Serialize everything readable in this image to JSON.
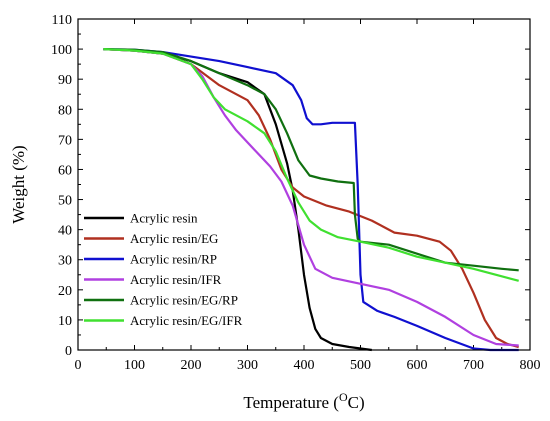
{
  "chart_data": {
    "type": "line",
    "xlabel": "Temperature (",
    "xlabel_sup": "O",
    "xlabel_tail": "C)",
    "ylabel": "Weight (%)",
    "xlim": [
      0,
      800
    ],
    "ylim": [
      0,
      110
    ],
    "xticks": [
      0,
      100,
      200,
      300,
      400,
      500,
      600,
      700,
      800
    ],
    "yticks": [
      0,
      10,
      20,
      30,
      40,
      50,
      60,
      70,
      80,
      90,
      100,
      110
    ],
    "grid": false,
    "legend_position": "bottom-left",
    "series": [
      {
        "name": "Acrylic resin",
        "color": "#000000",
        "x": [
          45,
          100,
          150,
          200,
          250,
          300,
          330,
          350,
          370,
          380,
          390,
          400,
          410,
          420,
          430,
          450,
          480,
          500,
          520
        ],
        "y": [
          100,
          99.5,
          98.5,
          96,
          92,
          89,
          85,
          75,
          62,
          53,
          40,
          25,
          14,
          7,
          4,
          2,
          1,
          0.5,
          0
        ]
      },
      {
        "name": "Acrylic resin/EG",
        "color": "#b03020",
        "x": [
          45,
          100,
          150,
          200,
          250,
          300,
          320,
          340,
          360,
          380,
          400,
          440,
          480,
          520,
          560,
          600,
          640,
          660,
          680,
          700,
          720,
          740,
          760,
          780
        ],
        "y": [
          100,
          99.5,
          98.5,
          95,
          88,
          83,
          78,
          70,
          60,
          54,
          51,
          48,
          46,
          43,
          39,
          38,
          36,
          33,
          27,
          19,
          10,
          4,
          2,
          1
        ]
      },
      {
        "name": "Acrylic resin/RP",
        "color": "#1010d0",
        "x": [
          45,
          100,
          150,
          200,
          250,
          300,
          350,
          380,
          395,
          405,
          415,
          430,
          450,
          470,
          490,
          495,
          500,
          505,
          530,
          560,
          600,
          650,
          700,
          730,
          760,
          780
        ],
        "y": [
          100,
          99.8,
          99,
          97.5,
          96,
          94,
          92,
          88,
          83,
          77,
          75,
          75,
          75.5,
          75.5,
          75.5,
          55,
          25,
          16,
          13,
          11,
          8,
          4,
          0.5,
          0,
          0,
          0
        ]
      },
      {
        "name": "Acrylic resin/IFR",
        "color": "#b040e0",
        "x": [
          45,
          100,
          150,
          200,
          220,
          240,
          260,
          280,
          300,
          320,
          340,
          360,
          380,
          400,
          420,
          450,
          500,
          550,
          600,
          650,
          700,
          740,
          780
        ],
        "y": [
          100,
          99.5,
          98.5,
          95,
          91,
          84,
          78,
          73,
          69,
          65,
          61,
          56,
          48,
          35,
          27,
          24,
          22,
          20,
          16,
          11,
          5,
          2,
          1.5
        ]
      },
      {
        "name": "Acrylic resin/EG/RP",
        "color": "#107010",
        "x": [
          45,
          100,
          150,
          200,
          250,
          300,
          330,
          350,
          370,
          390,
          410,
          430,
          460,
          488,
          490,
          495,
          500,
          550,
          600,
          650,
          700,
          750,
          780
        ],
        "y": [
          100,
          99.8,
          99,
          96,
          92,
          88,
          85,
          80,
          72,
          63,
          58,
          57,
          56,
          55.5,
          45,
          37,
          36,
          35,
          32,
          29,
          28,
          27,
          26.5
        ]
      },
      {
        "name": "Acrylic resin/EG/IFR",
        "color": "#40e030",
        "x": [
          45,
          100,
          150,
          200,
          220,
          240,
          260,
          300,
          330,
          350,
          370,
          390,
          410,
          430,
          460,
          500,
          550,
          600,
          650,
          700,
          740,
          780
        ],
        "y": [
          100,
          99.5,
          98.5,
          95,
          90,
          84,
          80,
          76,
          72,
          66,
          57,
          49,
          43,
          40,
          37.5,
          36,
          34,
          31,
          29,
          27,
          25,
          23
        ]
      }
    ]
  }
}
